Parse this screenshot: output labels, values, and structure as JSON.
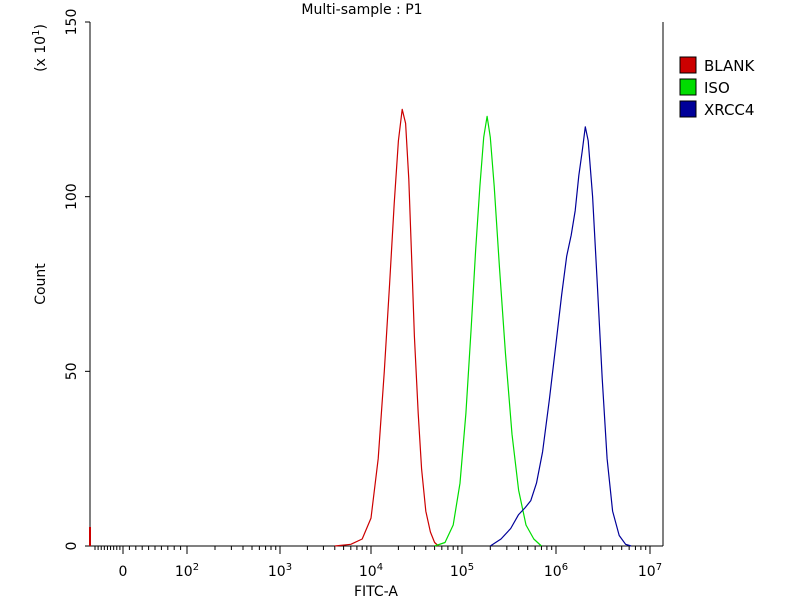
{
  "chart_data": {
    "type": "line",
    "title": "Multi-sample : P1",
    "xlabel": "FITC-A",
    "ylabel": "Count",
    "y_multiplier": "(x 10",
    "y_multiplier_exp": "1",
    "x_scale": "biexponential",
    "ylim": [
      0,
      150
    ],
    "y_ticks": [
      "0",
      "50",
      "100",
      "150"
    ],
    "x_ticks": [
      {
        "base": "0",
        "exp": ""
      },
      {
        "base": "10",
        "exp": "2"
      },
      {
        "base": "10",
        "exp": "3"
      },
      {
        "base": "10",
        "exp": "4"
      },
      {
        "base": "10",
        "exp": "5"
      },
      {
        "base": "10",
        "exp": "6"
      },
      {
        "base": "10",
        "exp": "7"
      }
    ],
    "legend_position": "top-right",
    "series": [
      {
        "name": "BLANK",
        "color": "#cc0000",
        "points": [
          [
            4000,
            0
          ],
          [
            6000,
            0.5
          ],
          [
            8000,
            2
          ],
          [
            10000,
            8
          ],
          [
            12000,
            25
          ],
          [
            14000,
            50
          ],
          [
            16000,
            75
          ],
          [
            18000,
            98
          ],
          [
            20000,
            116
          ],
          [
            22000,
            125
          ],
          [
            24000,
            121
          ],
          [
            26000,
            105
          ],
          [
            28000,
            82
          ],
          [
            30000,
            60
          ],
          [
            33000,
            38
          ],
          [
            36000,
            22
          ],
          [
            40000,
            10
          ],
          [
            45000,
            4
          ],
          [
            50000,
            1
          ],
          [
            55000,
            0
          ]
        ]
      },
      {
        "name": "ISO",
        "color": "#00dd00",
        "points": [
          [
            50000,
            0
          ],
          [
            65000,
            1
          ],
          [
            80000,
            6
          ],
          [
            95000,
            18
          ],
          [
            110000,
            38
          ],
          [
            125000,
            62
          ],
          [
            140000,
            85
          ],
          [
            155000,
            103
          ],
          [
            170000,
            117
          ],
          [
            185000,
            123
          ],
          [
            200000,
            117
          ],
          [
            220000,
            103
          ],
          [
            250000,
            80
          ],
          [
            290000,
            55
          ],
          [
            340000,
            32
          ],
          [
            400000,
            16
          ],
          [
            480000,
            6
          ],
          [
            580000,
            2
          ],
          [
            700000,
            0
          ]
        ]
      },
      {
        "name": "XRCC4",
        "color": "#000099",
        "points": [
          [
            200000,
            0
          ],
          [
            260000,
            2
          ],
          [
            330000,
            5
          ],
          [
            400000,
            9
          ],
          [
            470000,
            11
          ],
          [
            540000,
            13
          ],
          [
            620000,
            18
          ],
          [
            720000,
            27
          ],
          [
            850000,
            42
          ],
          [
            1000000,
            58
          ],
          [
            1150000,
            72
          ],
          [
            1300000,
            83
          ],
          [
            1450000,
            89
          ],
          [
            1600000,
            96
          ],
          [
            1750000,
            106
          ],
          [
            1900000,
            113
          ],
          [
            2050000,
            120
          ],
          [
            2200000,
            116
          ],
          [
            2450000,
            100
          ],
          [
            2750000,
            75
          ],
          [
            3100000,
            48
          ],
          [
            3500000,
            25
          ],
          [
            4000000,
            10
          ],
          [
            4700000,
            3
          ],
          [
            5500000,
            0.5
          ],
          [
            6300000,
            0
          ]
        ]
      }
    ]
  }
}
